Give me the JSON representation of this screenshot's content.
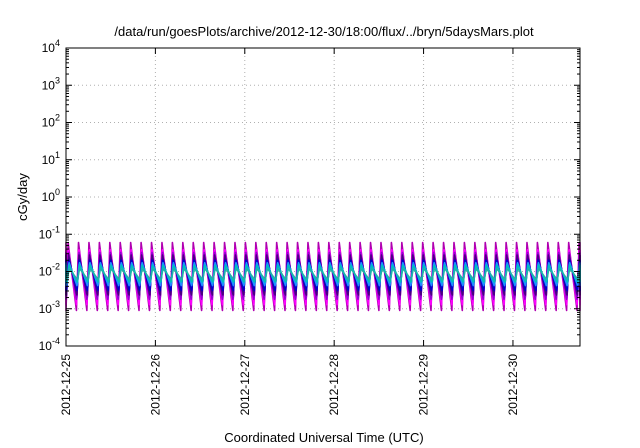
{
  "chart_data": {
    "type": "line",
    "title": "/data/run/goesPlots/archive/2012-12-30/18:00/flux/../bryn/5daysMars.plot",
    "xlabel": "Coordinated Universal Time (UTC)",
    "ylabel": "cGy/day",
    "yscale": "log",
    "ylim": [
      0.0001,
      10000
    ],
    "xlim": [
      "2012-12-25 00:00",
      "2012-12-30 18:00"
    ],
    "grid": true,
    "y_ticks": [
      {
        "base": "10",
        "exp": "-4"
      },
      {
        "base": "10",
        "exp": "-3"
      },
      {
        "base": "10",
        "exp": "-2"
      },
      {
        "base": "10",
        "exp": "-1"
      },
      {
        "base": "10",
        "exp": "0"
      },
      {
        "base": "10",
        "exp": "1"
      },
      {
        "base": "10",
        "exp": "2"
      },
      {
        "base": "10",
        "exp": "3"
      },
      {
        "base": "10",
        "exp": "4"
      }
    ],
    "x_ticks": [
      "2012-12-25",
      "2012-12-26",
      "2012-12-27",
      "2012-12-28",
      "2012-12-29",
      "2012-12-30"
    ],
    "series_colors": [
      "#b000b0",
      "#ff00ff",
      "#9400d3",
      "#4b0082",
      "#0000cd",
      "#1e90ff",
      "#00bfbf",
      "#20b2aa"
    ],
    "periodic_pattern": {
      "period_hours": 2.8,
      "peak_values": [
        0.06,
        0.045,
        0.035,
        0.028,
        0.022,
        0.018,
        0.015,
        0.012
      ],
      "trough_values": [
        0.0009,
        0.0012,
        0.0016,
        0.0022,
        0.003,
        0.004,
        0.005,
        0.006
      ]
    }
  }
}
